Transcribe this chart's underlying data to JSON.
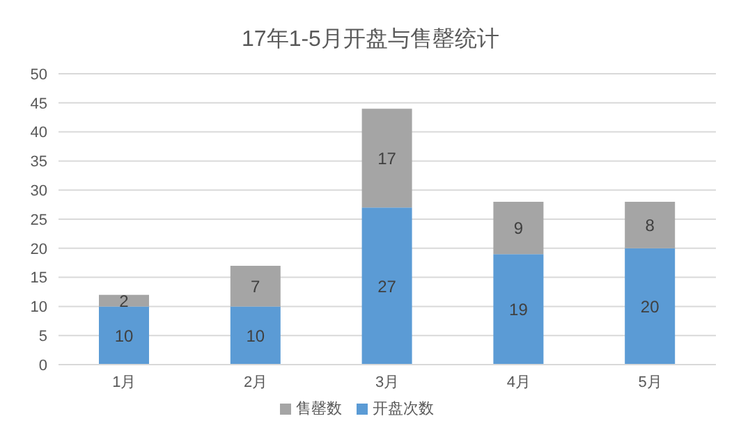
{
  "chart_data": {
    "type": "bar",
    "title": "17年1-5月开盘与售罄统计",
    "categories": [
      "1月",
      "2月",
      "3月",
      "4月",
      "5月"
    ],
    "stacked": true,
    "series": [
      {
        "name": "开盘次数",
        "color": "#5b9bd5",
        "values": [
          10,
          10,
          27,
          19,
          20
        ]
      },
      {
        "name": "售罄数",
        "color": "#a5a5a5",
        "values": [
          2,
          7,
          17,
          9,
          8
        ]
      }
    ],
    "ylim": [
      0,
      50
    ],
    "yticks": [
      0,
      5,
      10,
      15,
      20,
      25,
      30,
      35,
      40,
      45,
      50
    ],
    "grid": "y",
    "legend": "bottom",
    "data_labels": true
  }
}
